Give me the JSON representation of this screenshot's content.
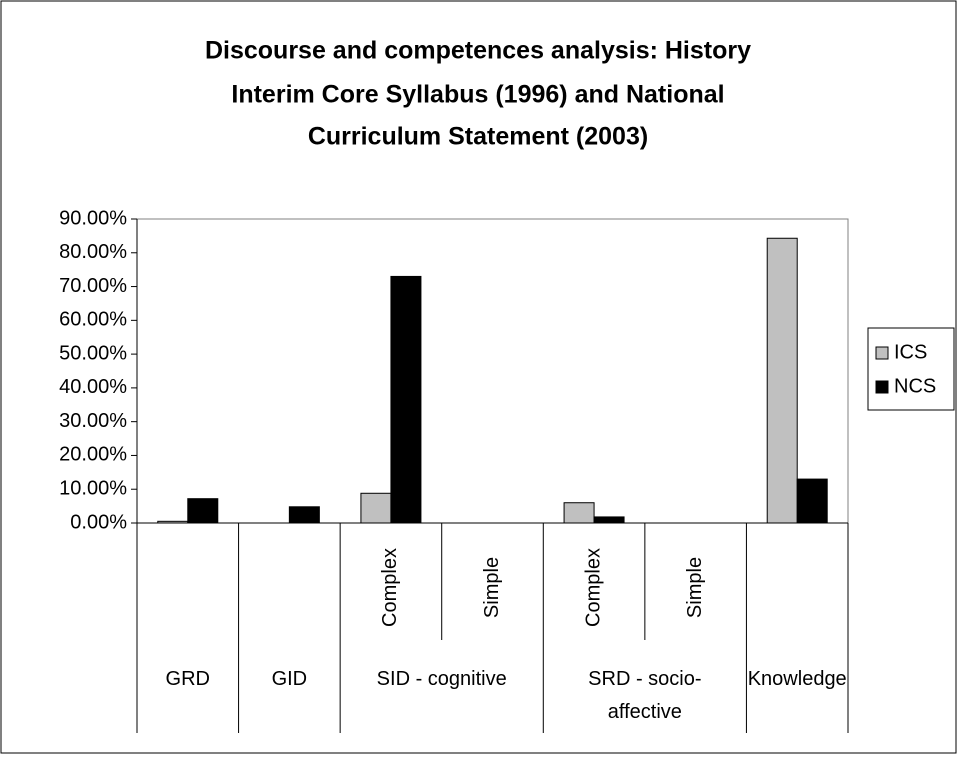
{
  "chart_data": {
    "type": "bar",
    "title": [
      "Discourse and competences analysis: History",
      "Interim Core Syllabus (1996) and National",
      "Curriculum Statement (2003)"
    ],
    "categories": [
      null,
      null,
      "Complex",
      "Simple",
      "Complex",
      "Simple",
      null
    ],
    "category_groups": [
      {
        "label": "GRD",
        "span": 1
      },
      {
        "label": "GID",
        "span": 1
      },
      {
        "label": "SID - cognitive",
        "span": 2
      },
      {
        "label": "SRD - socio-affective",
        "span": 2
      },
      {
        "label": "Knowledge",
        "span": 1
      }
    ],
    "series": [
      {
        "name": "ICS",
        "color": "#c0c0c0",
        "values": [
          0.5,
          0,
          8.8,
          0,
          6,
          0,
          84.3
        ]
      },
      {
        "name": "NCS",
        "color": "#000000",
        "values": [
          7.2,
          4.8,
          73,
          0,
          1.8,
          0,
          13
        ]
      }
    ],
    "ylim": [
      0,
      90
    ],
    "yticks": [
      {
        "value": 0,
        "label": "0.00%"
      },
      {
        "value": 10,
        "label": "10.00%"
      },
      {
        "value": 20,
        "label": "20.00%"
      },
      {
        "value": 30,
        "label": "30.00%"
      },
      {
        "value": 40,
        "label": "40.00%"
      },
      {
        "value": 50,
        "label": "50.00%"
      },
      {
        "value": 60,
        "label": "60.00%"
      },
      {
        "value": 70,
        "label": "70.00%"
      },
      {
        "value": 80,
        "label": "80.00%"
      },
      {
        "value": 90,
        "label": "90.00%"
      }
    ],
    "legend": "right"
  }
}
